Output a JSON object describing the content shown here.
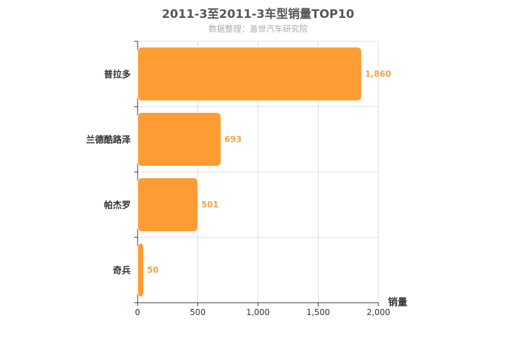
{
  "chart_data": {
    "type": "bar",
    "orientation": "horizontal",
    "title": "2011-3至2011-3车型销量TOP10",
    "subtitle": "数据整理：盖世汽车研究院",
    "categories": [
      "普拉多",
      "兰德酷路泽",
      "帕杰罗",
      "奇兵"
    ],
    "values": [
      1860,
      693,
      501,
      50
    ],
    "value_labels": [
      "1,860",
      "693",
      "501",
      "50"
    ],
    "xlabel": "销量",
    "ylabel": "",
    "xlim": [
      0,
      2000
    ],
    "x_ticks": [
      0,
      500,
      1000,
      1500,
      2000
    ],
    "x_tick_labels": [
      "0",
      "500",
      "1,000",
      "1,500",
      "2,000"
    ],
    "grid": true,
    "legend": "none",
    "colors": {
      "bar": "#ff9c33",
      "bar_border": "#ffffff",
      "label": "#f5a345",
      "grid": "#dddddd",
      "axis": "#333333"
    }
  }
}
